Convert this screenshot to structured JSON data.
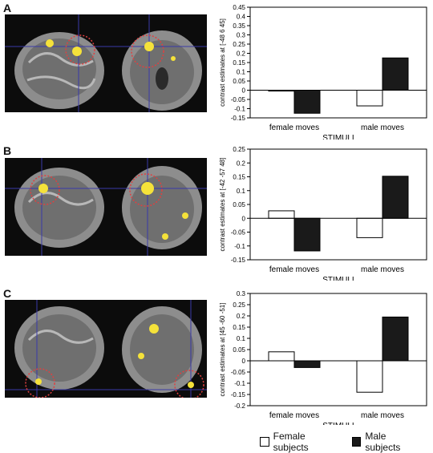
{
  "panels": [
    {
      "letter": "A"
    },
    {
      "letter": "B"
    },
    {
      "letter": "C"
    }
  ],
  "legend": {
    "female_label": "Female subjects",
    "male_label": "Male subjects",
    "female_color": "#ffffff",
    "male_color": "#1a1a1a"
  },
  "chart_data": [
    {
      "type": "bar",
      "categories": [
        "female moves",
        "male moves"
      ],
      "series": [
        {
          "name": "Female subjects",
          "values": [
            -0.005,
            -0.085
          ]
        },
        {
          "name": "Male subjects",
          "values": [
            -0.125,
            0.175
          ]
        }
      ],
      "ylabel": "contrast estimates at [-48 6 45]",
      "xlabel": "STIMULI",
      "ylim": [
        -0.15,
        0.45
      ],
      "yticks": [
        -0.15,
        -0.1,
        -0.05,
        0,
        0.05,
        0.1,
        0.15,
        0.2,
        0.25,
        0.3,
        0.35,
        0.4,
        0.45
      ],
      "ytick_labels": [
        "-0.15",
        "-0.1",
        "-0.05",
        "0",
        "0.05",
        "0.1",
        "0.15",
        "0.2",
        "0.25",
        "0.3",
        "0.35",
        "0.4",
        "0.45"
      ]
    },
    {
      "type": "bar",
      "categories": [
        "female moves",
        "male moves"
      ],
      "series": [
        {
          "name": "Female subjects",
          "values": [
            0.027,
            -0.07
          ]
        },
        {
          "name": "Male subjects",
          "values": [
            -0.118,
            0.152
          ]
        }
      ],
      "ylabel": "contrast estimates at [-42 -57 48]",
      "xlabel": "STIMULI",
      "ylim": [
        -0.15,
        0.25
      ],
      "yticks": [
        -0.15,
        -0.1,
        -0.05,
        0,
        0.05,
        0.1,
        0.15,
        0.2,
        0.25
      ],
      "ytick_labels": [
        "-0.15",
        "-0.1",
        "-0.05",
        "0",
        "0.05",
        "0.1",
        "0.15",
        "0.2",
        "0.25"
      ]
    },
    {
      "type": "bar",
      "categories": [
        "female moves",
        "male moves"
      ],
      "series": [
        {
          "name": "Female subjects",
          "values": [
            0.04,
            -0.14
          ]
        },
        {
          "name": "Male subjects",
          "values": [
            -0.03,
            0.195
          ]
        }
      ],
      "ylabel": "contrast estimates at [45 -60 -51]",
      "xlabel": "STIMULI",
      "ylim": [
        -0.2,
        0.3
      ],
      "yticks": [
        -0.2,
        -0.15,
        -0.1,
        -0.05,
        0,
        0.05,
        0.1,
        0.15,
        0.2,
        0.25,
        0.3
      ],
      "ytick_labels": [
        "-0.2",
        "-0.15",
        "-0.1",
        "-0.05",
        "0",
        "0.05",
        "0.1",
        "0.15",
        "0.2",
        "0.25",
        "0.3"
      ]
    }
  ]
}
